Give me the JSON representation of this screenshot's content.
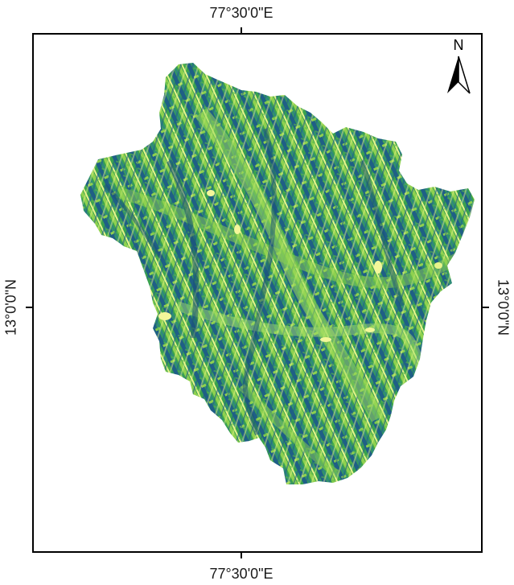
{
  "map": {
    "graticule": {
      "longitude_label": "77°30'0\"E",
      "latitude_label": "13°0'0\"N"
    },
    "north_arrow": {
      "letter": "N"
    },
    "raster_palette": {
      "dark_blue": "#1f5f86",
      "teal": "#2f8a7a",
      "green": "#3aa24e",
      "light_green": "#8fd14f",
      "yellow": "#e7f48a"
    },
    "frame_color": "#000000"
  }
}
